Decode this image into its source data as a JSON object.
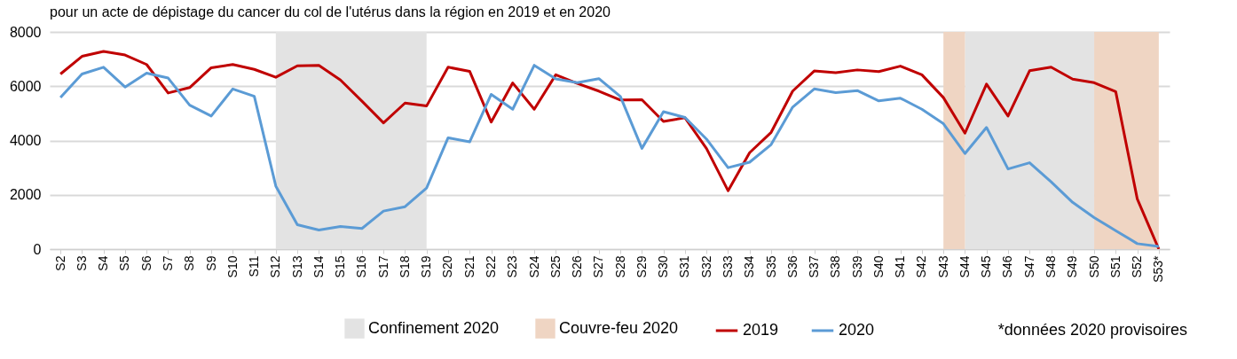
{
  "chart_data": {
    "type": "line",
    "title": "pour un acte de dépistage du cancer du col de l'utérus dans la région en 2019 et en 2020",
    "categories": [
      "S2",
      "S3",
      "S4",
      "S5",
      "S6",
      "S7",
      "S8",
      "S9",
      "S10",
      "S11",
      "S12",
      "S13",
      "S14",
      "S15",
      "S16",
      "S17",
      "S18",
      "S19",
      "S20",
      "S21",
      "S22",
      "S23",
      "S24",
      "S25",
      "S26",
      "S27",
      "S28",
      "S29",
      "S30",
      "S31",
      "S32",
      "S33",
      "S34",
      "S35",
      "S36",
      "S37",
      "S38",
      "S39",
      "S40",
      "S41",
      "S42",
      "S43",
      "S44",
      "S45",
      "S46",
      "S47",
      "S48",
      "S49",
      "S50",
      "S51",
      "S52",
      "S53*"
    ],
    "series": [
      {
        "name": "2019",
        "color": "#c00000",
        "values": [
          6450,
          7100,
          7280,
          7150,
          6800,
          5750,
          5950,
          6680,
          6800,
          6620,
          6330,
          6750,
          6770,
          6230,
          5450,
          4650,
          5380,
          5270,
          6700,
          6550,
          4680,
          6120,
          5150,
          6420,
          6100,
          5820,
          5490,
          5500,
          4700,
          4840,
          3700,
          2150,
          3550,
          4300,
          5820,
          6560,
          6500,
          6600,
          6540,
          6740,
          6420,
          5580,
          4270,
          6080,
          4900,
          6570,
          6700,
          6260,
          6130,
          5800,
          1850,
          0
        ]
      },
      {
        "name": "2020",
        "color": "#5b9bd5",
        "values": [
          5580,
          6450,
          6700,
          5970,
          6480,
          6300,
          5300,
          4900,
          5900,
          5630,
          2320,
          900,
          700,
          830,
          760,
          1400,
          1560,
          2250,
          4100,
          3950,
          5700,
          5150,
          6770,
          6270,
          6130,
          6280,
          5620,
          3710,
          5060,
          4850,
          4050,
          3000,
          3200,
          3850,
          5230,
          5900,
          5760,
          5840,
          5460,
          5560,
          5150,
          4620,
          3520,
          4480,
          2950,
          3180,
          2480,
          1720,
          1160,
          680,
          200,
          100
        ]
      }
    ],
    "bands": [
      {
        "axis": "x",
        "from": "S12",
        "to": "S19",
        "label": "Confinement 2020",
        "color": "#e3e3e3"
      },
      {
        "axis": "x",
        "from": "S44",
        "to": "S50",
        "color": "#e3e3e3"
      },
      {
        "axis": "x",
        "from": "S43",
        "to": "S44",
        "label": "Couvre-feu 2020",
        "color": "#efd5c3"
      },
      {
        "axis": "x",
        "from": "S50",
        "to": "S53*",
        "color": "#efd5c3"
      }
    ],
    "ylim": [
      0,
      8000
    ],
    "yticks": [
      0,
      {
        "value": 2000,
        "label": "2000"
      },
      {
        "value": 4000,
        "label": "4000"
      },
      {
        "value": 6000,
        "label": "6000"
      },
      {
        "value": 8000,
        "label": "8000"
      }
    ],
    "grid": "y",
    "legend": "bottom",
    "line_style": "solid",
    "annotations": [
      "*données 2020 provisoires"
    ]
  }
}
